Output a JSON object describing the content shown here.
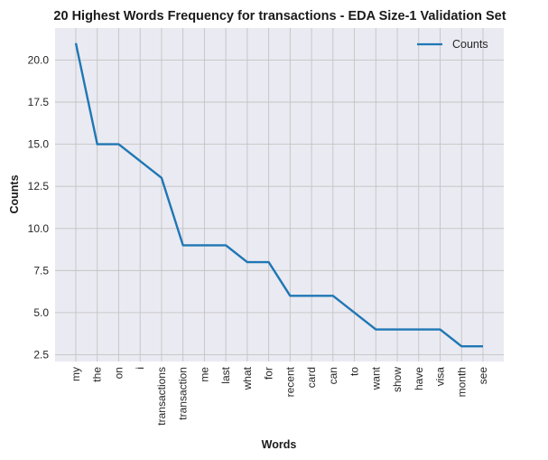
{
  "chart_data": {
    "type": "line",
    "title": "20 Highest Words Frequency for transactions - EDA Size-1 Validation Set",
    "xlabel": "Words",
    "ylabel": "Counts",
    "categories": [
      "my",
      "the",
      "on",
      "i",
      "transactions",
      "transaction",
      "me",
      "last",
      "what",
      "for",
      "recent",
      "card",
      "can",
      "to",
      "want",
      "show",
      "have",
      "visa",
      "month",
      "see"
    ],
    "series": [
      {
        "name": "Counts",
        "values": [
          21,
          15,
          15,
          14,
          13,
          9,
          9,
          9,
          8,
          8,
          6,
          6,
          6,
          5,
          4,
          4,
          4,
          4,
          3,
          3
        ],
        "color": "#1f77b4"
      }
    ],
    "yticks": [
      "2.5",
      "5.0",
      "7.5",
      "10.0",
      "12.5",
      "15.0",
      "17.5",
      "20.0"
    ],
    "ylim": [
      2.1,
      21.9
    ],
    "grid": true,
    "legend_position": "top-right",
    "background_color": "#eaeaf2"
  }
}
